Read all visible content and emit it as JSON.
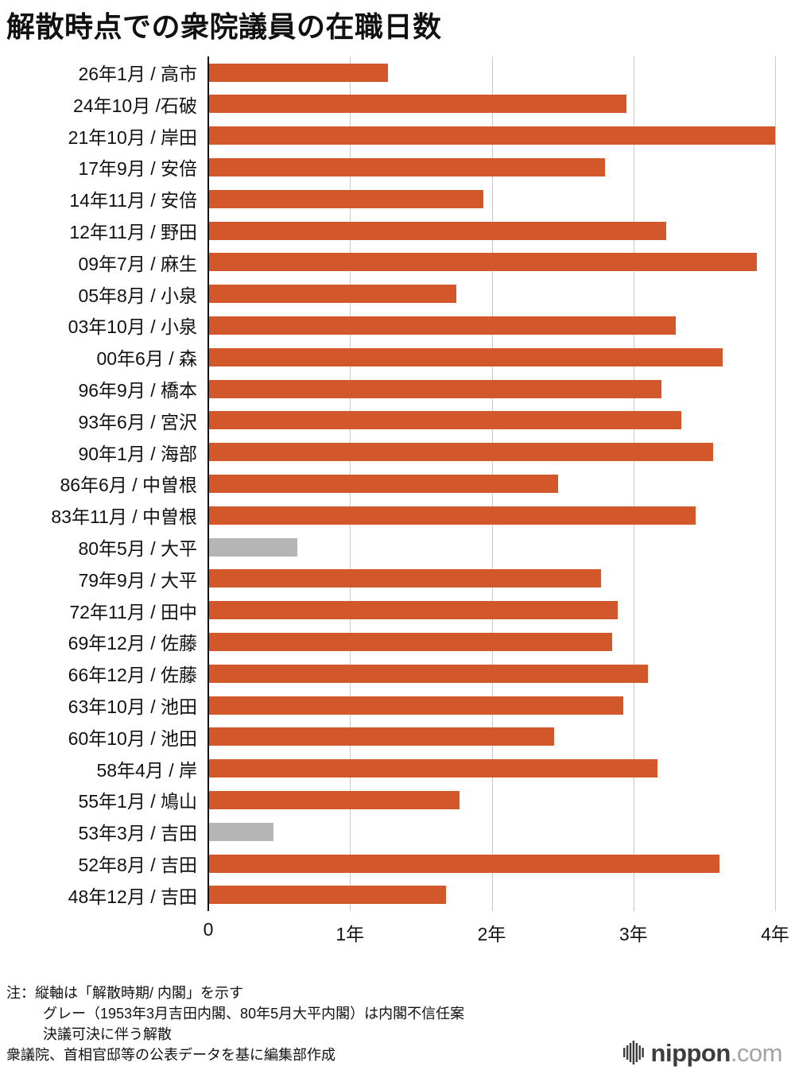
{
  "title": "解散時点での衆院議員の在職日数",
  "chart_data": {
    "type": "bar",
    "orientation": "horizontal",
    "title": "解散時点での衆院議員の在職日数",
    "categories": [
      "26年1月 / 高市",
      "24年10月 /石破",
      "21年10月 / 岸田",
      "17年9月 / 安倍",
      "14年11月 / 安倍",
      "12年11月 / 野田",
      "09年7月 / 麻生",
      "05年8月 / 小泉",
      "03年10月 / 小泉",
      "00年6月 / 森",
      "96年9月 / 橋本",
      "93年6月 / 宮沢",
      "90年1月 / 海部",
      "86年6月 / 中曽根",
      "83年11月 / 中曽根",
      "80年5月 / 大平",
      "79年9月 / 大平",
      "72年11月 / 田中",
      "69年12月 / 佐藤",
      "66年12月 / 佐藤",
      "63年10月 / 池田",
      "60年10月 / 池田",
      "58年4月 / 岸",
      "55年1月 / 鳩山",
      "53年3月 / 吉田",
      "52年8月 / 吉田",
      "48年12月 / 吉田"
    ],
    "values": [
      1.27,
      2.95,
      4.0,
      2.8,
      1.94,
      3.23,
      3.87,
      1.75,
      3.3,
      3.63,
      3.2,
      3.34,
      3.56,
      2.47,
      3.44,
      0.63,
      2.77,
      2.89,
      2.85,
      3.1,
      2.93,
      2.44,
      3.17,
      1.77,
      0.46,
      3.61,
      1.68
    ],
    "unit": "年",
    "xlim": [
      0,
      4
    ],
    "x_ticks": [
      "0",
      "1年",
      "2年",
      "3年",
      "4年"
    ],
    "x_tick_values": [
      0,
      1,
      2,
      3,
      4
    ],
    "bar_color": "#d2582c",
    "gray_color": "#b5b5b5",
    "gray_indices": [
      15,
      24
    ],
    "grid": true,
    "legend": "none"
  },
  "notes": {
    "lines": [
      "注：縦軸は「解散時期/ 内閣」を示す",
      "グレー（1953年3月吉田内閣、80年5月大平内閣）は内閣不信任案",
      "決議可決に伴う解散",
      "衆議院、首相官邸等の公表データを基に編集部作成"
    ]
  },
  "logo": {
    "brand": "nippon",
    "suffix": ".com"
  }
}
